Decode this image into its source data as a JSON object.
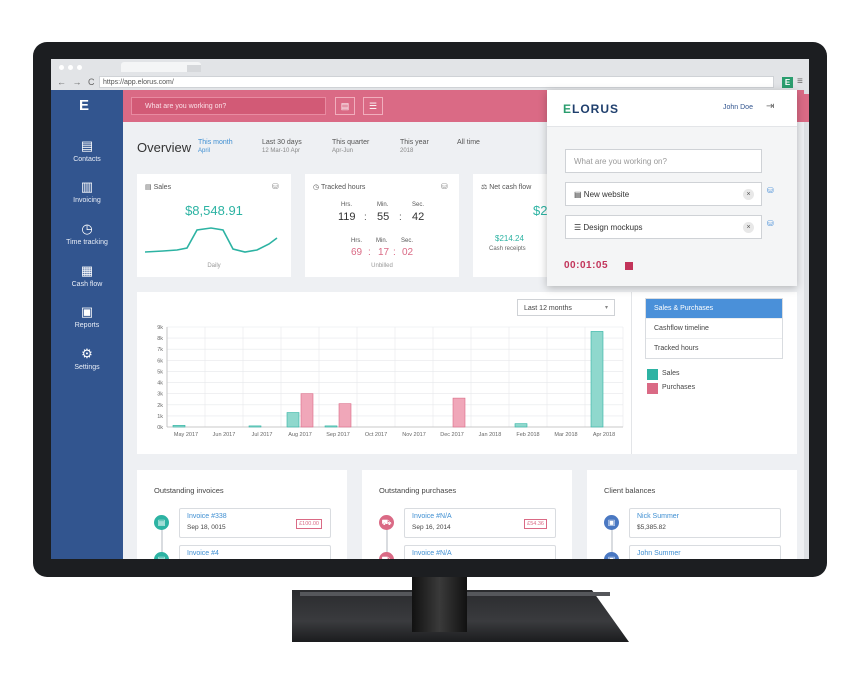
{
  "browser": {
    "url": "https://app.elorus.com/",
    "nav": "← → C",
    "ext_label": "E",
    "menu": "≡"
  },
  "sidebar": {
    "logo": "E",
    "items": [
      {
        "label": "Contacts",
        "icon": "contacts-icon",
        "glyph": "▤"
      },
      {
        "label": "Invoicing",
        "icon": "invoice-icon",
        "glyph": "▥"
      },
      {
        "label": "Time tracking",
        "icon": "stopwatch-icon",
        "glyph": "◷"
      },
      {
        "label": "Cash flow",
        "icon": "cash-flow-icon",
        "glyph": "▦"
      },
      {
        "label": "Reports",
        "icon": "reports-icon",
        "glyph": "▣"
      },
      {
        "label": "Settings",
        "icon": "gear-icon",
        "glyph": "⚙"
      }
    ]
  },
  "topbar": {
    "search_placeholder": "What are you working on?",
    "btn1_glyph": "▤",
    "btn2_glyph": "☰"
  },
  "overview": {
    "title": "Overview",
    "periods": [
      {
        "label": "This month",
        "sub": "April",
        "active": true
      },
      {
        "label": "Last 30 days",
        "sub": "12 Mar-10 Apr",
        "active": false
      },
      {
        "label": "This quarter",
        "sub": "Apr-Jun",
        "active": false
      },
      {
        "label": "This year",
        "sub": "2018",
        "active": false
      },
      {
        "label": "All time",
        "sub": "",
        "active": false
      }
    ]
  },
  "cards": {
    "sales": {
      "title": "Sales",
      "value": "$8,548.91",
      "caption": "Daily"
    },
    "hours": {
      "title": "Tracked hours",
      "hrs_label": "Hrs.",
      "min_label": "Min.",
      "sec_label": "Sec.",
      "tracked": [
        "119",
        "55",
        "42"
      ],
      "unbilled": [
        "69",
        "17",
        "02"
      ],
      "unbilled_label": "Unbilled",
      "colon": ":"
    },
    "cash": {
      "title": "Net cash flow",
      "value_partial": "$2",
      "receipts_value": "$214.24",
      "receipts_label": "Cash receipts"
    }
  },
  "chart_data": {
    "type": "bar",
    "range_select": "Last 12 months",
    "categories": [
      "May 2017",
      "Jun 2017",
      "Jul 2017",
      "Aug 2017",
      "Sep 2017",
      "Oct 2017",
      "Nov 2017",
      "Dec 2017",
      "Jan 2018",
      "Feb 2018",
      "Mar 2018",
      "Apr 2018"
    ],
    "y_ticks": [
      "0k",
      "1k",
      "2k",
      "3k",
      "4k",
      "5k",
      "6k",
      "7k",
      "8k",
      "9k"
    ],
    "ylim": [
      0,
      9000
    ],
    "series": [
      {
        "name": "Sales",
        "color": "#8fd8cd",
        "values": [
          150,
          0,
          100,
          1300,
          100,
          0,
          0,
          0,
          0,
          300,
          0,
          8600
        ]
      },
      {
        "name": "Purchases",
        "color": "#f0a7b9",
        "values": [
          0,
          0,
          0,
          3000,
          2100,
          0,
          0,
          2600,
          0,
          0,
          0,
          0
        ]
      }
    ],
    "grid": true,
    "legend": "right"
  },
  "chart_side": {
    "options": [
      {
        "label": "Sales & Purchases",
        "selected": true
      },
      {
        "label": "Cashflow timeline",
        "selected": false
      },
      {
        "label": "Tracked hours",
        "selected": false
      }
    ]
  },
  "panels": {
    "invoices": {
      "title": "Outstanding invoices",
      "entries": [
        {
          "title": "Invoice #338",
          "date": "Sep 18, 0015",
          "badge": "£100.00"
        },
        {
          "title": "Invoice #4",
          "date": "",
          "badge": ""
        }
      ]
    },
    "purchases": {
      "title": "Outstanding purchases",
      "entries": [
        {
          "title": "Invoice #N/A",
          "date": "Sep 16, 2014",
          "badge": "£54.36"
        },
        {
          "title": "Invoice #N/A",
          "date": "",
          "badge": ""
        }
      ]
    },
    "clients": {
      "title": "Client balances",
      "entries": [
        {
          "title": "Nick Summer",
          "date": "$5,385.82",
          "badge": ""
        },
        {
          "title": "John Summer",
          "date": "",
          "badge": ""
        }
      ]
    }
  },
  "popup": {
    "brand_e": "E",
    "brand_rest": "LORUS",
    "user": "John Doe",
    "logout_glyph": "⇥",
    "search_placeholder": "What are you working on?",
    "project": "New website",
    "task": "Design mockups",
    "project_glyph": "▤",
    "task_glyph": "☰",
    "x_glyph": "×",
    "tag_glyph": "⛁",
    "timer": "00:01:05"
  }
}
